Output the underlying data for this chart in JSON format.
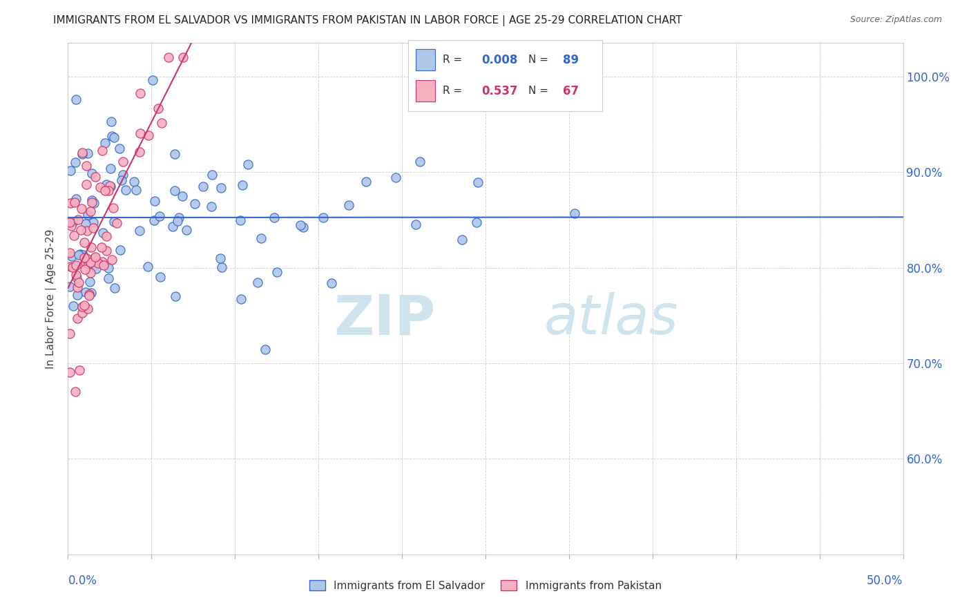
{
  "title": "IMMIGRANTS FROM EL SALVADOR VS IMMIGRANTS FROM PAKISTAN IN LABOR FORCE | AGE 25-29 CORRELATION CHART",
  "source": "Source: ZipAtlas.com",
  "ylabel_label": "In Labor Force | Age 25-29",
  "legend_label_blue": "Immigrants from El Salvador",
  "legend_label_pink": "Immigrants from Pakistan",
  "xmin": 0.0,
  "xmax": 0.5,
  "ymin": 0.5,
  "ymax": 1.035,
  "R_blue": 0.008,
  "N_blue": 89,
  "R_pink": 0.537,
  "N_pink": 67,
  "blue_color": "#aec6e8",
  "pink_color": "#f5b0c0",
  "trend_blue_color": "#3366cc",
  "trend_pink_color": "#cc3366",
  "watermark_color": "#d0e4f0",
  "blue_seed": 42,
  "pink_seed": 7
}
